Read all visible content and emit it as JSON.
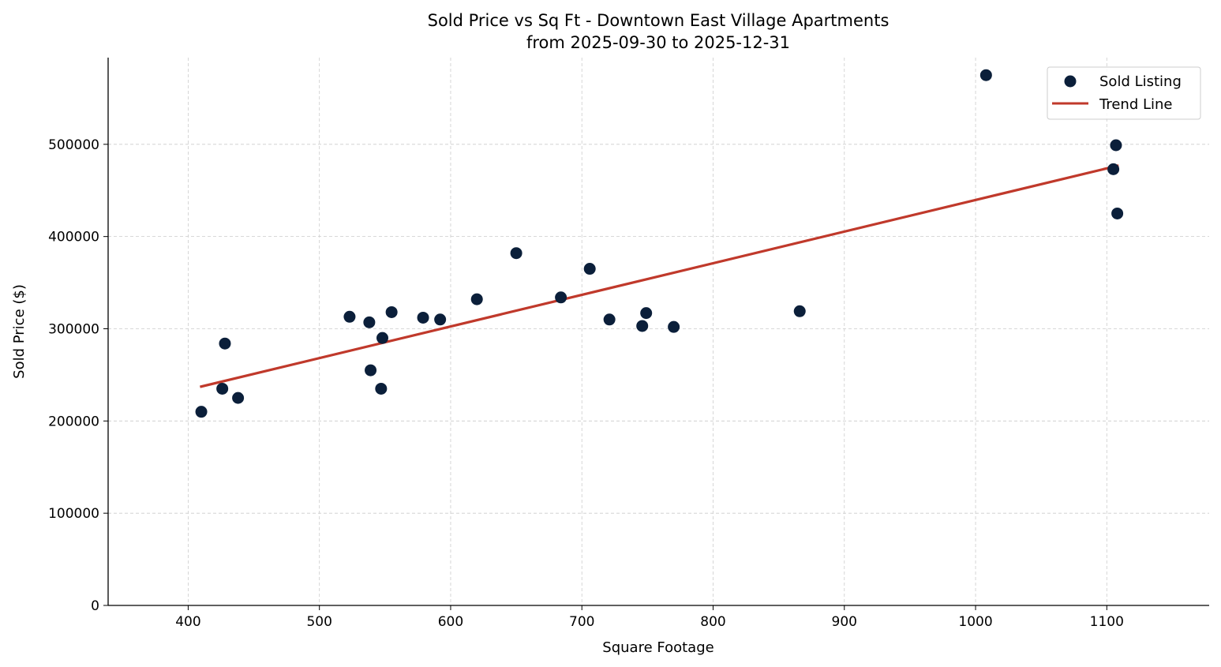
{
  "chart_data": {
    "type": "scatter",
    "title": "Sold Price vs Sq Ft - Downtown East Village Apartments",
    "subtitle": "from 2025-09-30 to 2025-12-31",
    "xlabel": "Square Footage",
    "ylabel": "Sold Price ($)",
    "xlim": [
      339,
      1178
    ],
    "ylim": [
      0,
      594000
    ],
    "xticks": [
      400,
      500,
      600,
      700,
      800,
      900,
      1000,
      1100
    ],
    "yticks": [
      0,
      100000,
      200000,
      300000,
      400000,
      500000
    ],
    "grid": true,
    "legend_position": "top-right",
    "legend": [
      "Sold Listing",
      "Trend Line"
    ],
    "colors": {
      "points": "#0b1f3a",
      "trend": "#c0392b"
    },
    "series": [
      {
        "name": "Sold Listing",
        "type": "scatter",
        "x": [
          410,
          426,
          428,
          438,
          523,
          538,
          539,
          548,
          547,
          555,
          579,
          592,
          620,
          650,
          684,
          706,
          721,
          746,
          749,
          770,
          866,
          1008,
          1107,
          1105,
          1108
        ],
        "y": [
          210000,
          235000,
          284000,
          225000,
          313000,
          307000,
          255000,
          290000,
          235000,
          318000,
          312000,
          310000,
          332000,
          382000,
          334000,
          365000,
          310000,
          303000,
          317000,
          302000,
          319000,
          575000,
          499000,
          473000,
          425000
        ]
      },
      {
        "name": "Trend Line",
        "type": "line",
        "x": [
          409,
          1109
        ],
        "y": [
          237000,
          477000
        ]
      }
    ]
  }
}
